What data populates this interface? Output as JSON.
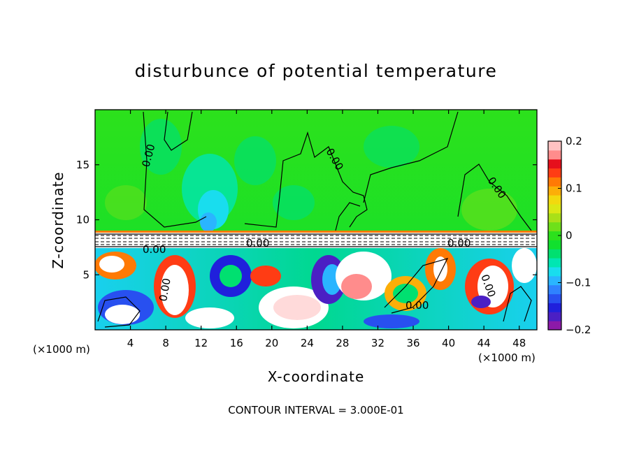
{
  "chart_data": {
    "type": "heatmap",
    "title": "disturbunce of potential temperature",
    "xlabel": "X-coordinate",
    "ylabel": "Z-coordinate",
    "x_unit": "(×1000 m)",
    "x_unit_left": "(×1000 m)",
    "x_ticks": [
      4,
      8,
      12,
      16,
      20,
      24,
      28,
      32,
      36,
      40,
      44,
      48
    ],
    "y_ticks": [
      5,
      10,
      15
    ],
    "xlim": [
      0,
      50
    ],
    "ylim": [
      0,
      20
    ],
    "grid": false,
    "colorbar": {
      "range": [
        -0.2,
        0.2
      ],
      "ticks": [
        "0.2",
        "0.1",
        "0",
        "−0.1",
        "−0.2"
      ],
      "colors": [
        "#8c1aa8",
        "#4b1fc4",
        "#2020dc",
        "#2850f0",
        "#2f82ff",
        "#2ab5ff",
        "#19ddee",
        "#00e6b2",
        "#00e070",
        "#11e02e",
        "#2ce11c",
        "#6ee01a",
        "#a9e018",
        "#dbe815",
        "#f2d90e",
        "#fcae08",
        "#ff7a05",
        "#ff3c14",
        "#e60f1c",
        "#ff8c8c",
        "#ffc2c2"
      ]
    },
    "contour_interval": "CONTOUR INTERVAL = 3.000E-01",
    "contour_labels": [
      "0.00",
      "0.00",
      "0.00",
      "0.00",
      "0.00",
      "0.00",
      "0.00",
      "0.00",
      "0.00"
    ],
    "stable_layer_z": [
      7.5,
      9.2
    ]
  }
}
